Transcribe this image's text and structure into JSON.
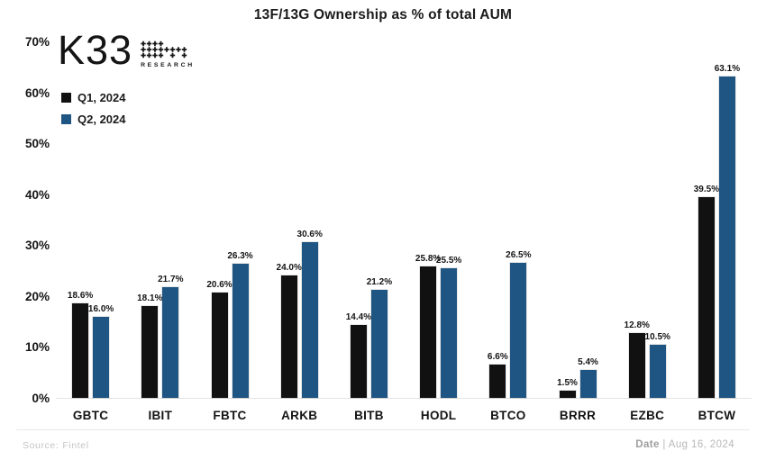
{
  "logo": {
    "text": "K33",
    "sub": "RESEARCH"
  },
  "footer": {
    "source_label": "Source:",
    "source_value": "Fintel",
    "date_label": "Date",
    "date_separator": "|",
    "date_value": "Aug 16, 2024"
  },
  "chart_data": {
    "type": "bar",
    "title": "13F/13G Ownership as % of total AUM",
    "categories": [
      "GBTC",
      "IBIT",
      "FBTC",
      "ARKB",
      "BITB",
      "HODL",
      "BTCO",
      "BRRR",
      "EZBC",
      "BTCW"
    ],
    "series": [
      {
        "name": "Q1, 2024",
        "color": "#111111",
        "values": [
          18.6,
          18.1,
          20.6,
          24.0,
          14.4,
          25.8,
          6.6,
          1.5,
          12.8,
          39.5
        ]
      },
      {
        "name": "Q2, 2024",
        "color": "#1f5582",
        "values": [
          16.0,
          21.7,
          26.3,
          30.6,
          21.2,
          25.5,
          26.5,
          5.4,
          10.5,
          63.1
        ]
      }
    ],
    "value_label_suffix": "%",
    "value_label_decimals": 1,
    "yticks": [
      0,
      10,
      20,
      30,
      40,
      50,
      60,
      70
    ],
    "ytick_suffix": "%",
    "ylim": [
      0,
      70
    ],
    "grid": false,
    "legend_position": "upper-left"
  }
}
